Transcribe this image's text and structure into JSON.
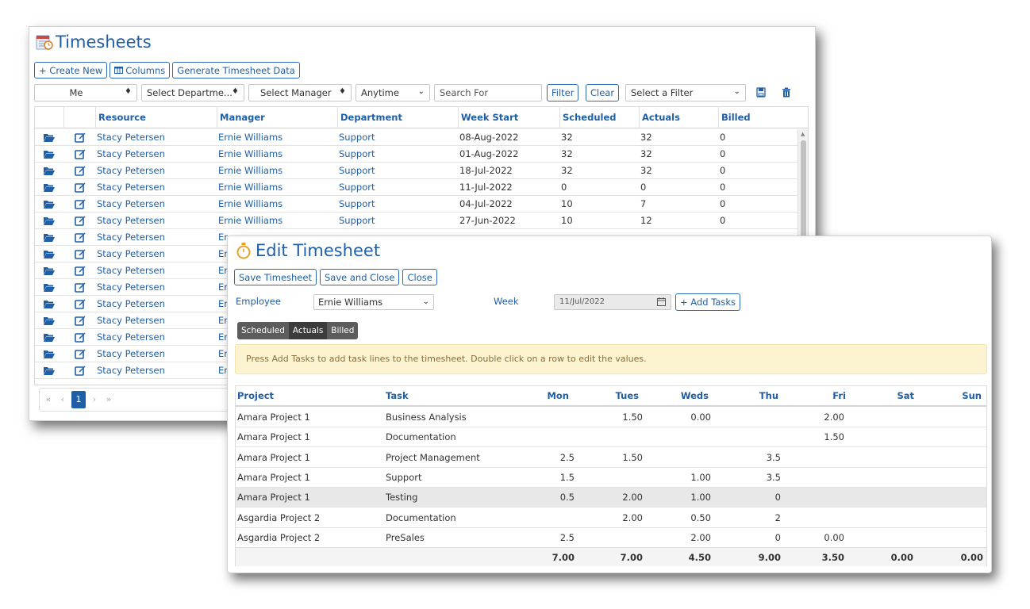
{
  "timesheets": {
    "title": "Timesheets",
    "toolbar": {
      "create_new": "+ Create New",
      "columns": "Columns",
      "generate": "Generate Timesheet Data"
    },
    "filters": {
      "resource": "Me",
      "department": "Select Departme...",
      "manager": "Select Manager",
      "date_range": "Anytime",
      "search_placeholder": "Search For",
      "filter_button": "Filter",
      "clear_button": "Clear",
      "saved_filter": "Select a Filter"
    },
    "columns": [
      "Resource",
      "Manager",
      "Department",
      "Week Start",
      "Scheduled",
      "Actuals",
      "Billed"
    ],
    "rows": [
      {
        "resource": "Stacy Petersen",
        "manager": "Ernie Williams",
        "department": "Support",
        "week_start": "08-Aug-2022",
        "scheduled": "32",
        "actuals": "32",
        "billed": "0"
      },
      {
        "resource": "Stacy Petersen",
        "manager": "Ernie Williams",
        "department": "Support",
        "week_start": "01-Aug-2022",
        "scheduled": "32",
        "actuals": "32",
        "billed": "0"
      },
      {
        "resource": "Stacy Petersen",
        "manager": "Ernie Williams",
        "department": "Support",
        "week_start": "18-Jul-2022",
        "scheduled": "32",
        "actuals": "32",
        "billed": "0"
      },
      {
        "resource": "Stacy Petersen",
        "manager": "Ernie Williams",
        "department": "Support",
        "week_start": "11-Jul-2022",
        "scheduled": "0",
        "actuals": "0",
        "billed": "0"
      },
      {
        "resource": "Stacy Petersen",
        "manager": "Ernie Williams",
        "department": "Support",
        "week_start": "04-Jul-2022",
        "scheduled": "10",
        "actuals": "7",
        "billed": "0"
      },
      {
        "resource": "Stacy Petersen",
        "manager": "Ernie Williams",
        "department": "Support",
        "week_start": "27-Jun-2022",
        "scheduled": "10",
        "actuals": "12",
        "billed": "0"
      },
      {
        "resource": "Stacy Petersen",
        "manager": "Er",
        "department": "",
        "week_start": "",
        "scheduled": "",
        "actuals": "",
        "billed": ""
      },
      {
        "resource": "Stacy Petersen",
        "manager": "Er",
        "department": "",
        "week_start": "",
        "scheduled": "",
        "actuals": "",
        "billed": ""
      },
      {
        "resource": "Stacy Petersen",
        "manager": "Er",
        "department": "",
        "week_start": "",
        "scheduled": "",
        "actuals": "",
        "billed": ""
      },
      {
        "resource": "Stacy Petersen",
        "manager": "Er",
        "department": "",
        "week_start": "",
        "scheduled": "",
        "actuals": "",
        "billed": ""
      },
      {
        "resource": "Stacy Petersen",
        "manager": "Er",
        "department": "",
        "week_start": "",
        "scheduled": "",
        "actuals": "",
        "billed": ""
      },
      {
        "resource": "Stacy Petersen",
        "manager": "Er",
        "department": "",
        "week_start": "",
        "scheduled": "",
        "actuals": "",
        "billed": ""
      },
      {
        "resource": "Stacy Petersen",
        "manager": "Er",
        "department": "",
        "week_start": "",
        "scheduled": "",
        "actuals": "",
        "billed": ""
      },
      {
        "resource": "Stacy Petersen",
        "manager": "Er",
        "department": "",
        "week_start": "",
        "scheduled": "",
        "actuals": "",
        "billed": ""
      },
      {
        "resource": "Stacy Petersen",
        "manager": "Er",
        "department": "",
        "week_start": "",
        "scheduled": "",
        "actuals": "",
        "billed": ""
      }
    ],
    "pager": {
      "first": "«",
      "prev": "‹",
      "current": "1",
      "next": "›",
      "last": "»"
    }
  },
  "edit": {
    "title": "Edit Timesheet",
    "buttons": {
      "save": "Save Timesheet",
      "save_close": "Save and Close",
      "close": "Close"
    },
    "employee_label": "Employee",
    "employee_value": "Ernie Williams",
    "week_label": "Week",
    "week_value": "11/Jul/2022",
    "add_tasks": "+ Add Tasks",
    "toggle": {
      "scheduled": "Scheduled",
      "actuals": "Actuals",
      "billed": "Billed",
      "active": "actuals"
    },
    "notice": "Press Add Tasks to add task lines to the timesheet. Double click on a row to edit the values.",
    "columns": {
      "project": "Project",
      "task": "Task",
      "mon": "Mon",
      "tue": "Tues",
      "wed": "Weds",
      "thu": "Thu",
      "fri": "Fri",
      "sat": "Sat",
      "sun": "Sun"
    },
    "rows": [
      {
        "project": "Amara Project 1",
        "task": "Business Analysis",
        "mon": "",
        "tue": "1.50",
        "wed": "0.00",
        "thu": "",
        "fri": "2.00",
        "sat": "",
        "sun": ""
      },
      {
        "project": "Amara Project 1",
        "task": "Documentation",
        "mon": "",
        "tue": "",
        "wed": "",
        "thu": "",
        "fri": "1.50",
        "sat": "",
        "sun": ""
      },
      {
        "project": "Amara Project 1",
        "task": "Project Management",
        "mon": "2.5",
        "tue": "1.50",
        "wed": "",
        "thu": "3.5",
        "fri": "",
        "sat": "",
        "sun": ""
      },
      {
        "project": "Amara Project 1",
        "task": "Support",
        "mon": "1.5",
        "tue": "",
        "wed": "1.00",
        "thu": "3.5",
        "fri": "",
        "sat": "",
        "sun": ""
      },
      {
        "project": "Amara Project 1",
        "task": "Testing",
        "mon": "0.5",
        "tue": "2.00",
        "wed": "1.00",
        "thu": "0",
        "fri": "",
        "sat": "",
        "sun": ""
      },
      {
        "project": "Asgardia Project 2",
        "task": "Documentation",
        "mon": "",
        "tue": "2.00",
        "wed": "0.50",
        "thu": "2",
        "fri": "",
        "sat": "",
        "sun": ""
      },
      {
        "project": "Asgardia Project 2",
        "task": "PreSales",
        "mon": "2.5",
        "tue": "",
        "wed": "2.00",
        "thu": "0",
        "fri": "0.00",
        "sat": "",
        "sun": ""
      }
    ],
    "selected_row": 4,
    "totals": {
      "mon": "7.00",
      "tue": "7.00",
      "wed": "4.50",
      "thu": "9.00",
      "fri": "3.50",
      "sat": "0.00",
      "sun": "0.00"
    }
  },
  "colors": {
    "accent": "#1f5fa8",
    "notice_bg": "#fcf3d1",
    "toggle_bg": "#5c5c5c"
  }
}
